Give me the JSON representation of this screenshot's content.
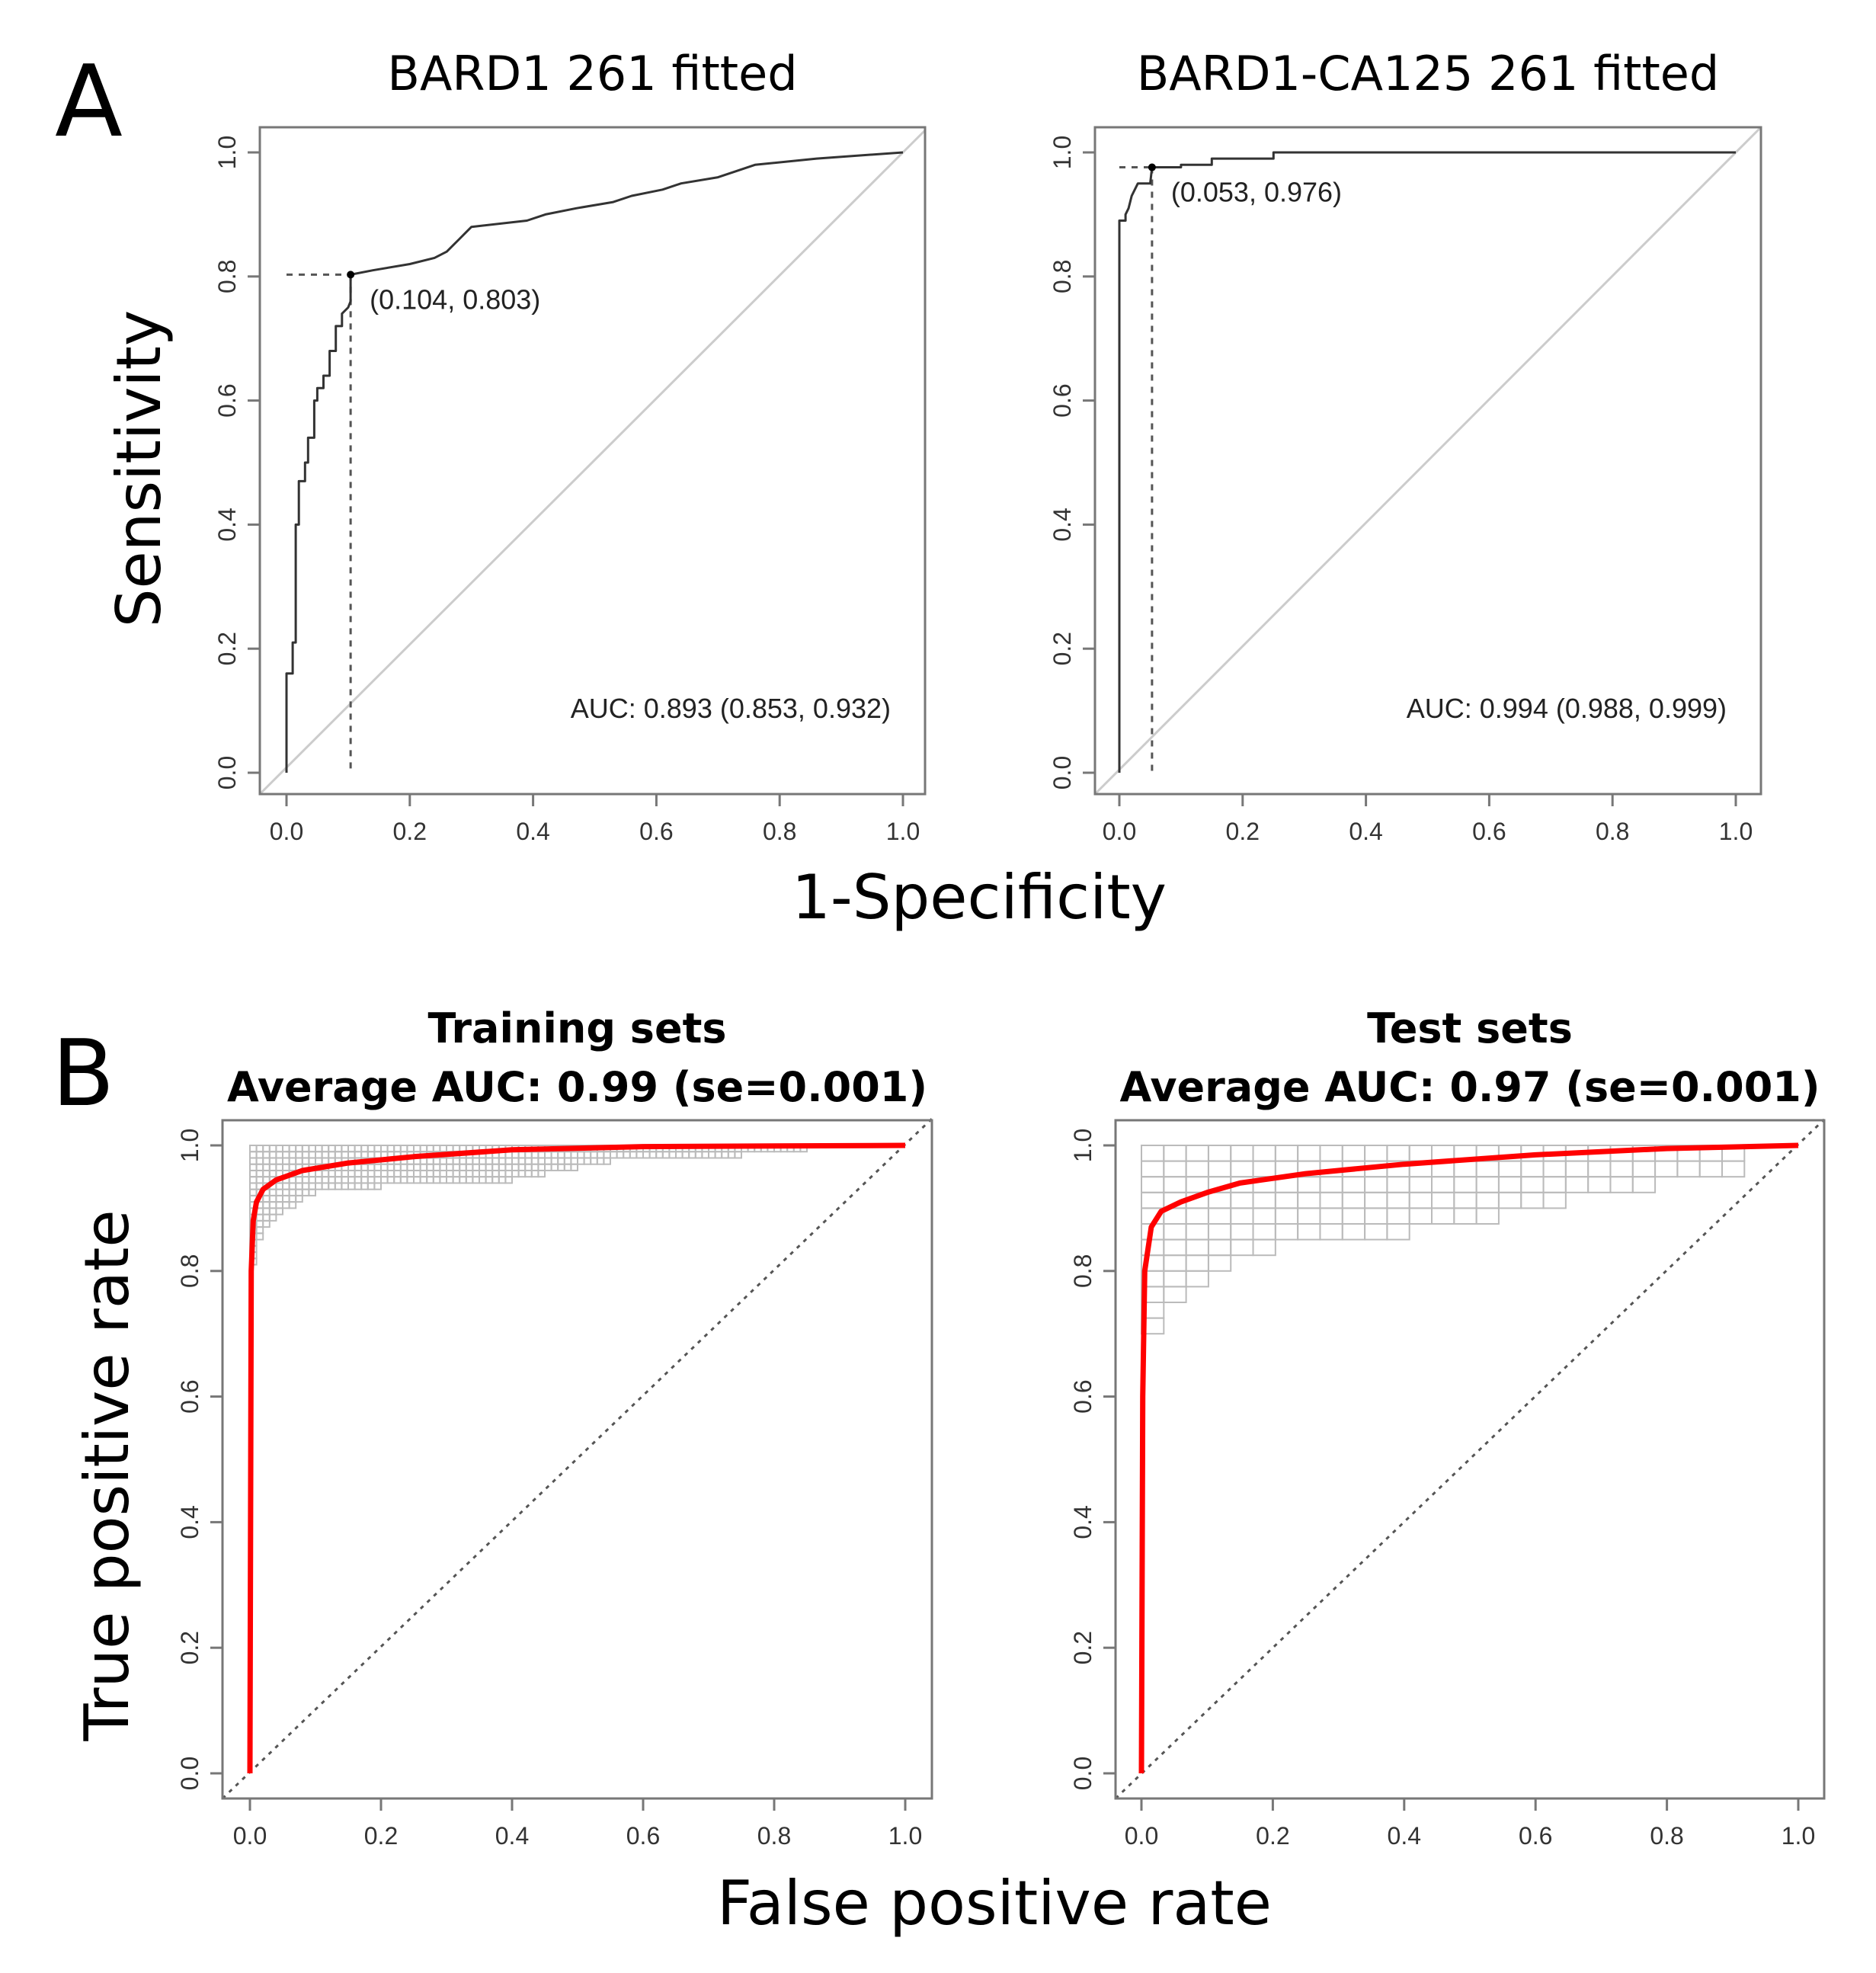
{
  "panel_labels": [
    "A",
    "B"
  ],
  "panel_a": {
    "ylabel": "Sensitivity",
    "xlabel": "1-Specificity"
  },
  "panel_b": {
    "ylabel": "True positive rate",
    "xlabel": "False positive rate"
  },
  "chart_data": [
    {
      "type": "line",
      "title": "BARD1 261 fitted",
      "xlabel": "1-Specificity",
      "ylabel": "Sensitivity",
      "xlim": [
        0,
        1
      ],
      "ylim": [
        0,
        1
      ],
      "ticks": [
        "0.0",
        "0.2",
        "0.4",
        "0.6",
        "0.8",
        "1.0"
      ],
      "annotation": "(0.104, 0.803)",
      "threshold": [
        0.104,
        0.803
      ],
      "auc_text": "AUC: 0.893 (0.853, 0.932)",
      "colors": {
        "curve": "#333333",
        "diagonal": "#cccccc"
      },
      "style": "step",
      "points": [
        [
          0,
          0
        ],
        [
          0,
          0.16
        ],
        [
          0.01,
          0.16
        ],
        [
          0.01,
          0.21
        ],
        [
          0.015,
          0.21
        ],
        [
          0.015,
          0.4
        ],
        [
          0.02,
          0.4
        ],
        [
          0.02,
          0.47
        ],
        [
          0.03,
          0.47
        ],
        [
          0.03,
          0.5
        ],
        [
          0.035,
          0.5
        ],
        [
          0.035,
          0.54
        ],
        [
          0.045,
          0.54
        ],
        [
          0.045,
          0.6
        ],
        [
          0.05,
          0.6
        ],
        [
          0.05,
          0.62
        ],
        [
          0.06,
          0.62
        ],
        [
          0.06,
          0.64
        ],
        [
          0.07,
          0.64
        ],
        [
          0.07,
          0.68
        ],
        [
          0.08,
          0.68
        ],
        [
          0.08,
          0.72
        ],
        [
          0.09,
          0.72
        ],
        [
          0.09,
          0.74
        ],
        [
          0.1,
          0.75
        ],
        [
          0.104,
          0.76
        ],
        [
          0.104,
          0.803
        ],
        [
          0.14,
          0.81
        ],
        [
          0.2,
          0.82
        ],
        [
          0.24,
          0.83
        ],
        [
          0.26,
          0.84
        ],
        [
          0.27,
          0.85
        ],
        [
          0.28,
          0.86
        ],
        [
          0.29,
          0.87
        ],
        [
          0.3,
          0.88
        ],
        [
          0.39,
          0.89
        ],
        [
          0.42,
          0.9
        ],
        [
          0.47,
          0.91
        ],
        [
          0.53,
          0.92
        ],
        [
          0.56,
          0.93
        ],
        [
          0.61,
          0.94
        ],
        [
          0.64,
          0.95
        ],
        [
          0.7,
          0.96
        ],
        [
          0.73,
          0.97
        ],
        [
          0.76,
          0.98
        ],
        [
          0.86,
          0.99
        ],
        [
          1,
          1
        ]
      ]
    },
    {
      "type": "line",
      "title": "BARD1-CA125 261 fitted",
      "xlabel": "1-Specificity",
      "ylabel": "Sensitivity",
      "xlim": [
        0,
        1
      ],
      "ylim": [
        0,
        1
      ],
      "ticks": [
        "0.0",
        "0.2",
        "0.4",
        "0.6",
        "0.8",
        "1.0"
      ],
      "annotation": "(0.053, 0.976)",
      "threshold": [
        0.053,
        0.976
      ],
      "auc_text": "AUC: 0.994 (0.988, 0.999)",
      "colors": {
        "curve": "#333333",
        "diagonal": "#cccccc"
      },
      "style": "step",
      "points": [
        [
          0,
          0
        ],
        [
          0,
          0.89
        ],
        [
          0.01,
          0.89
        ],
        [
          0.01,
          0.9
        ],
        [
          0.015,
          0.91
        ],
        [
          0.02,
          0.93
        ],
        [
          0.03,
          0.95
        ],
        [
          0.05,
          0.95
        ],
        [
          0.053,
          0.976
        ],
        [
          0.1,
          0.976
        ],
        [
          0.1,
          0.98
        ],
        [
          0.15,
          0.98
        ],
        [
          0.15,
          0.99
        ],
        [
          0.25,
          0.99
        ],
        [
          0.25,
          1
        ],
        [
          1,
          1
        ]
      ]
    },
    {
      "type": "line",
      "title": "Training sets",
      "subtitle": "Average AUC: 0.99 (se=0.001)",
      "xlabel": "False positive rate",
      "ylabel": "True positive rate",
      "xlim": [
        0,
        1
      ],
      "ylim": [
        0,
        1
      ],
      "ticks": [
        "0.0",
        "0.2",
        "0.4",
        "0.6",
        "0.8",
        "1.0"
      ],
      "colors": {
        "curve": "#ff0000",
        "individual": "#bbbbbb",
        "diagonal": "#555555"
      },
      "style": "smooth",
      "points": [
        [
          0,
          0
        ],
        [
          0.002,
          0.8
        ],
        [
          0.005,
          0.88
        ],
        [
          0.01,
          0.91
        ],
        [
          0.02,
          0.93
        ],
        [
          0.04,
          0.945
        ],
        [
          0.08,
          0.96
        ],
        [
          0.15,
          0.972
        ],
        [
          0.25,
          0.982
        ],
        [
          0.4,
          0.993
        ],
        [
          0.6,
          0.998
        ],
        [
          1,
          1
        ]
      ],
      "grid_step": [
        0.01,
        0.01
      ],
      "grid_envelope": [
        [
          0,
          0.8
        ],
        [
          0.02,
          0.87
        ],
        [
          0.05,
          0.9
        ],
        [
          0.1,
          0.93
        ],
        [
          0.2,
          0.94
        ],
        [
          0.4,
          0.95
        ],
        [
          0.55,
          0.98
        ],
        [
          0.85,
          0.995
        ]
      ]
    },
    {
      "type": "line",
      "title": "Test sets",
      "subtitle": "Average AUC: 0.97 (se=0.001)",
      "xlabel": "False positive rate",
      "ylabel": "True positive rate",
      "xlim": [
        0,
        1
      ],
      "ylim": [
        0,
        1
      ],
      "ticks": [
        "0.0",
        "0.2",
        "0.4",
        "0.6",
        "0.8",
        "1.0"
      ],
      "colors": {
        "curve": "#ff0000",
        "individual": "#bbbbbb",
        "diagonal": "#555555"
      },
      "style": "smooth",
      "points": [
        [
          0,
          0
        ],
        [
          0.002,
          0.6
        ],
        [
          0.005,
          0.8
        ],
        [
          0.015,
          0.87
        ],
        [
          0.03,
          0.895
        ],
        [
          0.06,
          0.91
        ],
        [
          0.1,
          0.925
        ],
        [
          0.15,
          0.94
        ],
        [
          0.25,
          0.955
        ],
        [
          0.4,
          0.97
        ],
        [
          0.6,
          0.985
        ],
        [
          0.8,
          0.995
        ],
        [
          1,
          1
        ]
      ],
      "grid_step": [
        0.034,
        0.025
      ],
      "grid_envelope": [
        [
          0,
          0.69
        ],
        [
          0.03,
          0.75
        ],
        [
          0.1,
          0.8
        ],
        [
          0.2,
          0.85
        ],
        [
          0.45,
          0.88
        ],
        [
          0.7,
          0.94
        ],
        [
          0.91,
          0.97
        ]
      ]
    }
  ]
}
